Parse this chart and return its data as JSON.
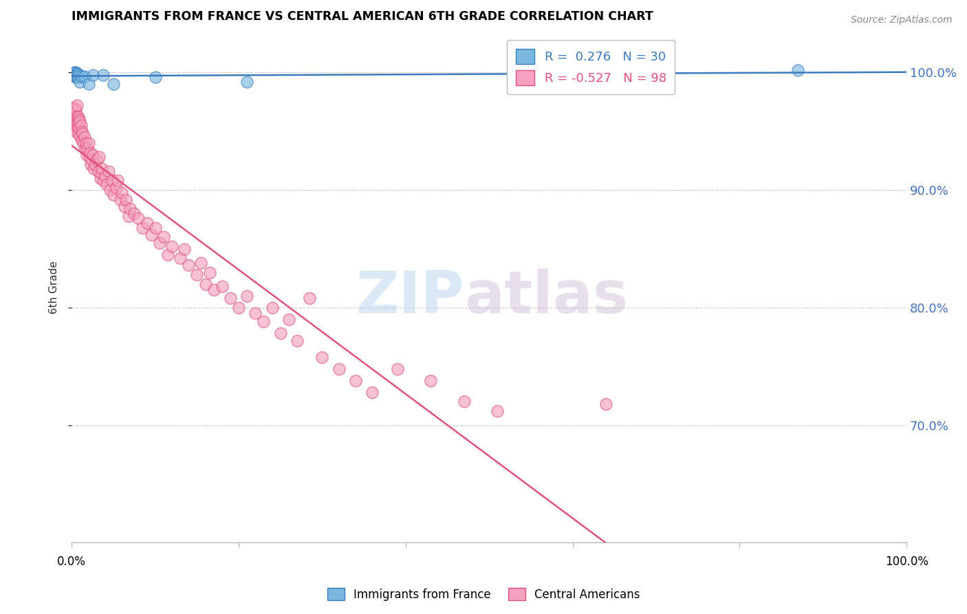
{
  "title": "IMMIGRANTS FROM FRANCE VS CENTRAL AMERICAN 6TH GRADE CORRELATION CHART",
  "source": "Source: ZipAtlas.com",
  "ylabel": "6th Grade",
  "france_color": "#7ab8e0",
  "central_color": "#f5a0be",
  "france_line_color": "#3a7bbf",
  "central_line_color": "#e0527a",
  "france_R": 0.276,
  "france_N": 30,
  "central_R": -0.527,
  "central_N": 98,
  "watermark_zip": "ZIP",
  "watermark_atlas": "atlas",
  "ymin": 0.6,
  "ymax": 1.035,
  "xmin": 0.0,
  "xmax": 1.0,
  "yticks": [
    0.7,
    0.8,
    0.9,
    1.0
  ],
  "ytick_labels": [
    "70.0%",
    "80.0%",
    "90.0%",
    "100.0%"
  ],
  "france_x": [
    0.001,
    0.002,
    0.002,
    0.003,
    0.003,
    0.003,
    0.004,
    0.004,
    0.004,
    0.004,
    0.005,
    0.005,
    0.005,
    0.005,
    0.006,
    0.006,
    0.006,
    0.007,
    0.008,
    0.009,
    0.01,
    0.012,
    0.015,
    0.02,
    0.025,
    0.038,
    0.05,
    0.1,
    0.21,
    0.87
  ],
  "france_y": [
    0.999,
    0.997,
    0.999,
    0.998,
    0.998,
    1.0,
    0.999,
    0.998,
    0.997,
    1.0,
    0.998,
    0.999,
    1.0,
    0.997,
    0.999,
    0.998,
    0.996,
    0.999,
    0.996,
    0.998,
    0.992,
    0.997,
    0.997,
    0.99,
    0.998,
    0.998,
    0.99,
    0.996,
    0.992,
    1.002
  ],
  "central_x": [
    0.001,
    0.002,
    0.002,
    0.003,
    0.003,
    0.004,
    0.004,
    0.004,
    0.005,
    0.005,
    0.005,
    0.006,
    0.006,
    0.007,
    0.007,
    0.008,
    0.008,
    0.009,
    0.009,
    0.01,
    0.01,
    0.011,
    0.012,
    0.012,
    0.013,
    0.014,
    0.015,
    0.016,
    0.017,
    0.018,
    0.019,
    0.02,
    0.021,
    0.022,
    0.023,
    0.024,
    0.025,
    0.026,
    0.028,
    0.03,
    0.032,
    0.033,
    0.034,
    0.035,
    0.036,
    0.038,
    0.04,
    0.042,
    0.044,
    0.046,
    0.048,
    0.05,
    0.053,
    0.055,
    0.058,
    0.06,
    0.063,
    0.065,
    0.068,
    0.07,
    0.075,
    0.08,
    0.085,
    0.09,
    0.095,
    0.1,
    0.105,
    0.11,
    0.115,
    0.12,
    0.13,
    0.135,
    0.14,
    0.15,
    0.155,
    0.16,
    0.165,
    0.17,
    0.18,
    0.19,
    0.2,
    0.21,
    0.22,
    0.23,
    0.24,
    0.25,
    0.26,
    0.27,
    0.285,
    0.3,
    0.32,
    0.34,
    0.36,
    0.39,
    0.43,
    0.47,
    0.51,
    0.64
  ],
  "central_y": [
    0.97,
    0.968,
    0.96,
    0.965,
    0.955,
    0.962,
    0.97,
    0.958,
    0.968,
    0.96,
    0.95,
    0.963,
    0.972,
    0.958,
    0.953,
    0.962,
    0.948,
    0.96,
    0.952,
    0.958,
    0.946,
    0.955,
    0.95,
    0.942,
    0.948,
    0.94,
    0.945,
    0.935,
    0.94,
    0.93,
    0.935,
    0.94,
    0.928,
    0.932,
    0.922,
    0.926,
    0.93,
    0.918,
    0.922,
    0.926,
    0.916,
    0.928,
    0.91,
    0.914,
    0.918,
    0.908,
    0.912,
    0.905,
    0.916,
    0.9,
    0.908,
    0.896,
    0.902,
    0.908,
    0.892,
    0.898,
    0.886,
    0.892,
    0.878,
    0.884,
    0.88,
    0.876,
    0.868,
    0.872,
    0.862,
    0.868,
    0.855,
    0.86,
    0.845,
    0.852,
    0.842,
    0.85,
    0.836,
    0.828,
    0.838,
    0.82,
    0.83,
    0.815,
    0.818,
    0.808,
    0.8,
    0.81,
    0.795,
    0.788,
    0.8,
    0.778,
    0.79,
    0.772,
    0.808,
    0.758,
    0.748,
    0.738,
    0.728,
    0.748,
    0.738,
    0.72,
    0.712,
    0.718
  ]
}
